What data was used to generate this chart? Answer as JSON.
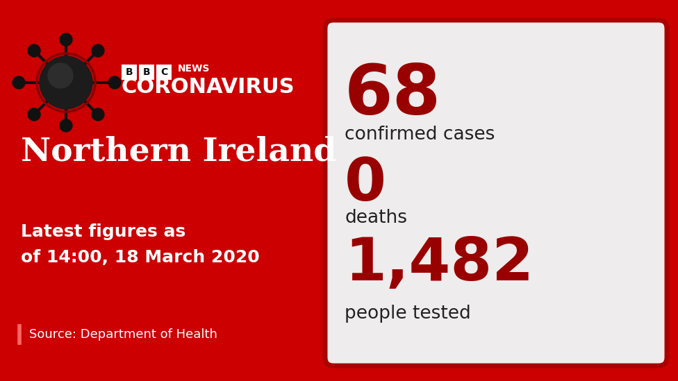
{
  "bg_color": "#cc0000",
  "right_panel_bg": "#eeecec",
  "right_panel_border": "#aa0000",
  "dark_red": "#990000",
  "dark_text": "#222222",
  "white": "#ffffff",
  "black": "#111111",
  "region": "Northern Ireland",
  "date_line1": "Latest figures as",
  "date_line2": "of 14:00, 18 March 2020",
  "source": "Source: Department of Health",
  "bbc_text": "BBC",
  "news_text": "NEWS",
  "coronavirus": "CORONAVIRUS",
  "confirmed_value": "68",
  "confirmed_label": "confirmed cases",
  "deaths_value": "0",
  "deaths_label": "deaths",
  "tested_value": "1,482",
  "tested_label": "people tested"
}
